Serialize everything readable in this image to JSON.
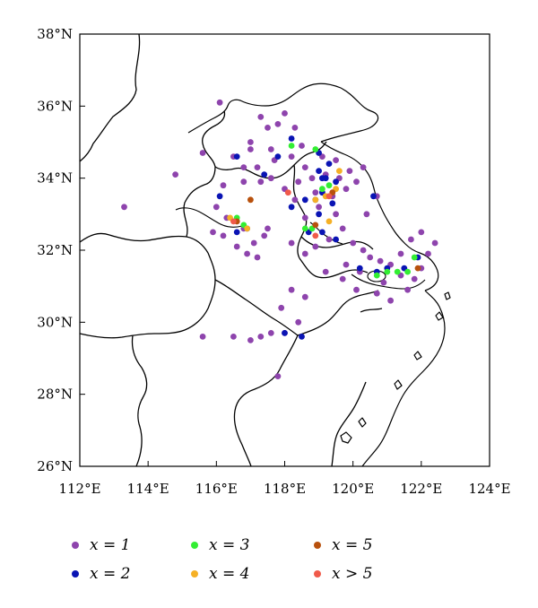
{
  "chart_data": {
    "type": "scatter",
    "title": "",
    "xlabel": "",
    "ylabel": "",
    "xlim": [
      112,
      124
    ],
    "ylim": [
      26,
      38
    ],
    "x_ticks": [
      112,
      114,
      116,
      118,
      120,
      122,
      124
    ],
    "y_ticks": [
      26,
      28,
      30,
      32,
      34,
      36,
      38
    ],
    "x_tick_labels": [
      "112°E",
      "114°E",
      "116°E",
      "118°E",
      "120°E",
      "122°E",
      "124°E"
    ],
    "y_tick_labels": [
      "26°N",
      "28°N",
      "30°N",
      "32°N",
      "34°N",
      "36°N",
      "38°N"
    ],
    "grid": false,
    "legend_position": "bottom",
    "series": [
      {
        "name": "x = 1",
        "color": "#8e44ad",
        "points": [
          [
            116.1,
            36.1
          ],
          [
            117.0,
            35.0
          ],
          [
            117.5,
            35.4
          ],
          [
            117.8,
            35.5
          ],
          [
            118.0,
            35.8
          ],
          [
            117.3,
            35.7
          ],
          [
            118.3,
            35.4
          ],
          [
            118.5,
            34.9
          ],
          [
            117.6,
            34.8
          ],
          [
            117.0,
            34.8
          ],
          [
            116.5,
            34.6
          ],
          [
            116.8,
            34.3
          ],
          [
            117.2,
            34.3
          ],
          [
            117.7,
            34.5
          ],
          [
            118.2,
            34.6
          ],
          [
            118.6,
            34.3
          ],
          [
            119.1,
            34.6
          ],
          [
            119.5,
            34.5
          ],
          [
            119.9,
            34.2
          ],
          [
            120.3,
            34.3
          ],
          [
            120.1,
            33.9
          ],
          [
            119.8,
            33.7
          ],
          [
            119.4,
            33.5
          ],
          [
            119.0,
            33.2
          ],
          [
            118.6,
            32.9
          ],
          [
            118.3,
            33.4
          ],
          [
            118.0,
            33.7
          ],
          [
            117.6,
            34.0
          ],
          [
            117.3,
            33.9
          ],
          [
            116.8,
            33.9
          ],
          [
            116.2,
            33.8
          ],
          [
            116.0,
            33.2
          ],
          [
            115.6,
            34.7
          ],
          [
            114.8,
            34.1
          ],
          [
            113.3,
            33.2
          ],
          [
            116.2,
            32.4
          ],
          [
            115.9,
            32.5
          ],
          [
            116.6,
            32.1
          ],
          [
            117.1,
            32.2
          ],
          [
            117.4,
            32.4
          ],
          [
            117.2,
            31.8
          ],
          [
            116.9,
            31.9
          ],
          [
            117.5,
            32.6
          ],
          [
            118.2,
            32.2
          ],
          [
            118.6,
            31.9
          ],
          [
            118.9,
            32.1
          ],
          [
            119.3,
            32.3
          ],
          [
            119.7,
            32.6
          ],
          [
            120.0,
            32.2
          ],
          [
            120.3,
            32.0
          ],
          [
            120.5,
            31.8
          ],
          [
            120.8,
            31.7
          ],
          [
            121.1,
            31.6
          ],
          [
            121.4,
            31.3
          ],
          [
            121.8,
            31.2
          ],
          [
            122.0,
            31.5
          ],
          [
            122.2,
            31.9
          ],
          [
            122.4,
            32.2
          ],
          [
            122.0,
            32.5
          ],
          [
            121.7,
            32.3
          ],
          [
            121.4,
            31.9
          ],
          [
            120.2,
            31.4
          ],
          [
            119.8,
            31.6
          ],
          [
            119.2,
            31.4
          ],
          [
            120.7,
            30.8
          ],
          [
            120.9,
            31.1
          ],
          [
            121.6,
            30.9
          ],
          [
            118.2,
            30.9
          ],
          [
            117.9,
            30.4
          ],
          [
            118.4,
            30.0
          ],
          [
            118.6,
            30.7
          ],
          [
            117.6,
            29.7
          ],
          [
            117.0,
            29.5
          ],
          [
            116.5,
            29.6
          ],
          [
            115.6,
            29.6
          ],
          [
            117.3,
            29.6
          ],
          [
            118.0,
            29.7
          ],
          [
            117.8,
            28.5
          ],
          [
            116.6,
            32.8
          ],
          [
            116.8,
            32.6
          ],
          [
            116.3,
            32.9
          ],
          [
            119.6,
            34.0
          ],
          [
            119.2,
            34.1
          ],
          [
            118.8,
            34.0
          ],
          [
            119.5,
            33.0
          ],
          [
            120.7,
            33.5
          ],
          [
            120.4,
            33.0
          ],
          [
            118.9,
            33.6
          ],
          [
            118.4,
            33.9
          ],
          [
            119.7,
            31.2
          ],
          [
            120.1,
            30.9
          ],
          [
            121.1,
            30.6
          ]
        ]
      },
      {
        "name": "x = 2",
        "color": "#0a14b4",
        "points": [
          [
            118.2,
            35.1
          ],
          [
            119.0,
            34.7
          ],
          [
            116.6,
            34.6
          ],
          [
            117.8,
            34.6
          ],
          [
            119.3,
            34.4
          ],
          [
            119.0,
            34.2
          ],
          [
            119.2,
            34.0
          ],
          [
            119.5,
            33.9
          ],
          [
            119.1,
            33.6
          ],
          [
            118.9,
            33.4
          ],
          [
            118.6,
            33.4
          ],
          [
            119.0,
            33.0
          ],
          [
            120.6,
            33.5
          ],
          [
            116.1,
            33.5
          ],
          [
            117.4,
            34.1
          ],
          [
            118.2,
            33.2
          ],
          [
            118.7,
            32.5
          ],
          [
            119.1,
            32.5
          ],
          [
            119.5,
            32.3
          ],
          [
            116.6,
            32.5
          ],
          [
            116.9,
            32.6
          ],
          [
            120.2,
            31.5
          ],
          [
            120.7,
            31.4
          ],
          [
            121.0,
            31.5
          ],
          [
            121.5,
            31.5
          ],
          [
            121.9,
            31.8
          ],
          [
            118.0,
            29.7
          ],
          [
            118.5,
            29.6
          ],
          [
            119.4,
            33.3
          ],
          [
            119.1,
            34.0
          ]
        ]
      },
      {
        "name": "x = 3",
        "color": "#33ee33",
        "points": [
          [
            118.2,
            34.9
          ],
          [
            118.9,
            34.8
          ],
          [
            119.3,
            33.8
          ],
          [
            119.1,
            33.7
          ],
          [
            118.8,
            32.6
          ],
          [
            118.6,
            32.6
          ],
          [
            116.6,
            32.9
          ],
          [
            116.8,
            32.7
          ],
          [
            121.0,
            31.4
          ],
          [
            121.3,
            31.4
          ],
          [
            121.6,
            31.4
          ],
          [
            121.8,
            31.8
          ],
          [
            120.7,
            31.3
          ]
        ]
      },
      {
        "name": "x = 4",
        "color": "#f5b025",
        "points": [
          [
            119.6,
            34.2
          ],
          [
            119.2,
            33.5
          ],
          [
            119.5,
            33.7
          ],
          [
            118.9,
            33.4
          ],
          [
            119.3,
            32.8
          ],
          [
            116.4,
            32.9
          ],
          [
            116.9,
            32.6
          ]
        ]
      },
      {
        "name": "x = 5",
        "color": "#b8510d",
        "points": [
          [
            117.0,
            33.4
          ],
          [
            119.4,
            33.6
          ],
          [
            116.6,
            32.8
          ],
          [
            118.9,
            32.7
          ],
          [
            121.9,
            31.5
          ]
        ]
      },
      {
        "name": "x > 5",
        "color": "#f05a4a",
        "points": [
          [
            118.1,
            33.6
          ],
          [
            119.3,
            33.5
          ],
          [
            116.5,
            32.8
          ],
          [
            118.9,
            32.4
          ]
        ]
      }
    ]
  },
  "legend": {
    "items": [
      {
        "label": "x = 1",
        "color": "#8e44ad"
      },
      {
        "label": "x = 2",
        "color": "#0a14b4"
      },
      {
        "label": "x = 3",
        "color": "#33ee33"
      },
      {
        "label": "x = 4",
        "color": "#f5b025"
      },
      {
        "label": "x = 5",
        "color": "#b8510d"
      },
      {
        "label": "x > 5",
        "color": "#f05a4a"
      }
    ]
  }
}
